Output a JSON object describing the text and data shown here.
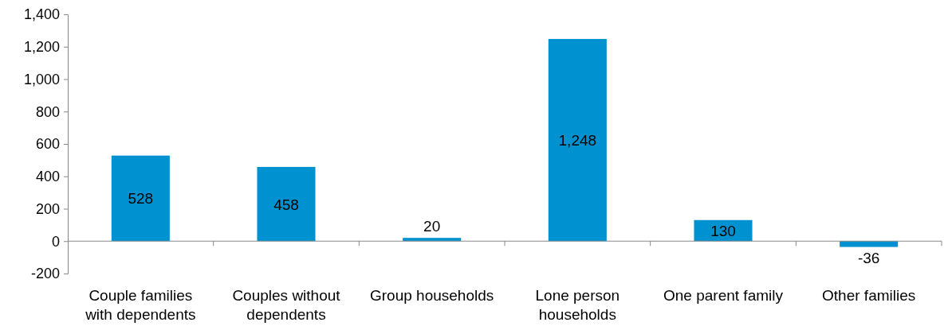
{
  "chart_data": {
    "type": "bar",
    "categories": [
      "Couple families with dependents",
      "Couples without dependents",
      "Group households",
      "Lone person households",
      "One parent family",
      "Other families"
    ],
    "values": [
      528,
      458,
      20,
      1248,
      130,
      -36
    ],
    "value_labels": [
      "528",
      "458",
      "20",
      "1,248",
      "130",
      "-36"
    ],
    "color": "#0092d0",
    "ylim": [
      -200,
      1400
    ],
    "yticks": [
      {
        "value": -200,
        "label": "-200"
      },
      {
        "value": 0,
        "label": "0"
      },
      {
        "value": 200,
        "label": "200"
      },
      {
        "value": 400,
        "label": "400"
      },
      {
        "value": 600,
        "label": "600"
      },
      {
        "value": 800,
        "label": "800"
      },
      {
        "value": 1000,
        "label": "1,000"
      },
      {
        "value": 1200,
        "label": "1,200"
      },
      {
        "value": 1400,
        "label": "1,400"
      }
    ]
  }
}
